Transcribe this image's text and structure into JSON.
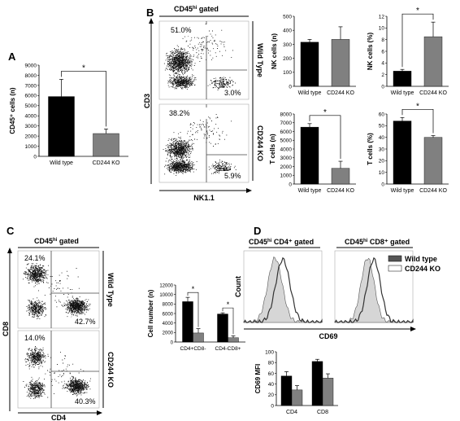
{
  "panels": {
    "A": {
      "letter": "A",
      "chart_data": {
        "type": "bar",
        "categories": [
          "Wild type",
          "CD244 KO"
        ],
        "values": [
          5900,
          2250
        ],
        "errors": [
          1700,
          450
        ],
        "ylabel": "CD45⁺ cells (n)",
        "ylim": [
          0,
          9000
        ],
        "yticks": [
          0,
          1000,
          2000,
          3000,
          4000,
          5000,
          6000,
          7000,
          8000,
          9000
        ],
        "significance": "*",
        "colors": [
          "#000000",
          "#808080"
        ]
      }
    },
    "B": {
      "letter": "B",
      "header": "CD45hi gated",
      "header_main": "CD45",
      "header_sup": "hi",
      "header_tail": " gated",
      "xaxis": "NK1.1",
      "yaxis": "CD3",
      "row_labels": [
        "Wild Type",
        "CD244 KO"
      ],
      "plot1_pcts": [
        "51.0%",
        "3.0%"
      ],
      "plot2_pcts": [
        "38.2%",
        "5.9%"
      ],
      "charts": [
        {
          "type": "bar",
          "categories": [
            "Wild type",
            "CD244 KO"
          ],
          "values": [
            315,
            335
          ],
          "errors": [
            20,
            90
          ],
          "ylabel": "NK cells (n)",
          "ylim": [
            0,
            500
          ],
          "yticks": [
            0,
            100,
            200,
            300,
            400,
            500
          ],
          "significance": ""
        },
        {
          "type": "bar",
          "categories": [
            "Wild type",
            "CD244 KO"
          ],
          "values": [
            2.6,
            8.5
          ],
          "errors": [
            0.3,
            2.5
          ],
          "ylabel": "NK cells (%)",
          "ylim": [
            0,
            12
          ],
          "yticks": [
            0,
            2,
            4,
            6,
            8,
            10,
            12
          ],
          "significance": "*"
        },
        {
          "type": "bar",
          "categories": [
            "Wild type",
            "CD244 KO"
          ],
          "values": [
            6500,
            1800
          ],
          "errors": [
            400,
            800
          ],
          "ylabel": "T cells (n)",
          "ylim": [
            0,
            8000
          ],
          "yticks": [
            0,
            1000,
            2000,
            3000,
            4000,
            5000,
            6000,
            7000,
            8000
          ],
          "significance": "*"
        },
        {
          "type": "bar",
          "categories": [
            "Wild type",
            "CD244 KO"
          ],
          "values": [
            54,
            40
          ],
          "errors": [
            3,
            1.5
          ],
          "ylabel": "T cells (%)",
          "ylim": [
            0,
            60
          ],
          "yticks": [
            0,
            10,
            20,
            30,
            40,
            50,
            60
          ],
          "significance": "*"
        }
      ]
    },
    "C": {
      "letter": "C",
      "header": "CD45hi gated",
      "header_main": "CD45",
      "header_sup": "hi",
      "header_tail": " gated",
      "xaxis": "CD4",
      "yaxis": "CD8",
      "row_labels": [
        "Wild Type",
        "CD244 KO"
      ],
      "plot1_pcts": [
        "24.1%",
        "42.7%"
      ],
      "plot2_pcts": [
        "14.0%",
        "40.3%"
      ],
      "chart_data": {
        "type": "bar",
        "categories": [
          "CD4+CD8-",
          "CD4-CD8+"
        ],
        "series": [
          {
            "values": [
              8500,
              5900
            ],
            "errors": [
              900,
              250
            ]
          },
          {
            "values": [
              1900,
              900
            ],
            "errors": [
              900,
              400
            ]
          }
        ],
        "ylabel": "Cell number (n)",
        "ylim": [
          0,
          12000
        ],
        "yticks": [
          0,
          2000,
          4000,
          6000,
          8000,
          10000,
          12000
        ],
        "significance": "*"
      }
    },
    "D": {
      "letter": "D",
      "header1_main": "CD45",
      "header1_sup": "hi",
      "header1_tail": " CD4⁺ gated",
      "header2_main": "CD45",
      "header2_sup": "hi",
      "header2_tail": " CD8⁺ gated",
      "yaxis": "Count",
      "xaxis": "CD69",
      "legend": [
        "Wild type",
        "CD244 KO"
      ],
      "chart_data": {
        "type": "bar",
        "categories": [
          "CD4",
          "CD8"
        ],
        "series": [
          {
            "name": "Wild type",
            "values": [
              55,
              82
            ],
            "errors": [
              8,
              4
            ]
          },
          {
            "name": "CD244 KO",
            "values": [
              29,
              51
            ],
            "errors": [
              8,
              8
            ]
          }
        ],
        "ylabel": "CD69 MFI",
        "ylim": [
          0,
          100
        ],
        "yticks": [
          0,
          20,
          40,
          60,
          80,
          100
        ]
      }
    }
  }
}
